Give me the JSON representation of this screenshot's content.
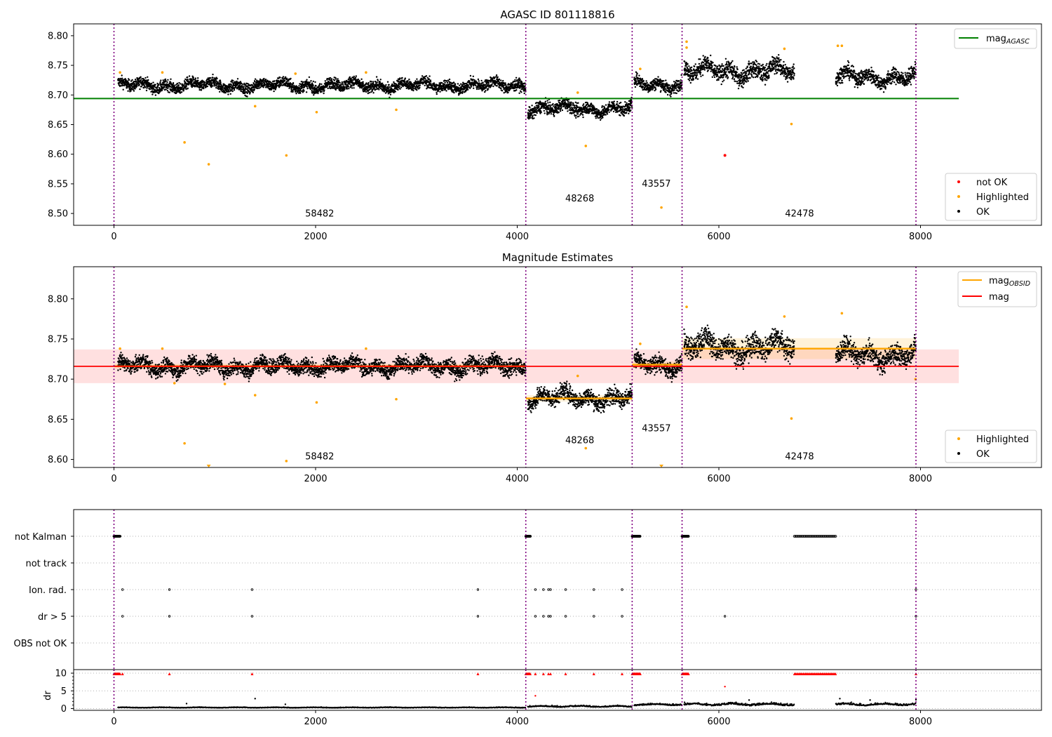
{
  "chart_data": [
    {
      "type": "scatter",
      "title": "AGASC ID 801118816",
      "xlim": [
        -400,
        9200
      ],
      "ylim": [
        8.48,
        8.82
      ],
      "xticks": [
        0,
        2000,
        4000,
        6000,
        8000
      ],
      "yticks": [
        8.5,
        8.55,
        8.6,
        8.65,
        8.7,
        8.75,
        8.8
      ],
      "xtick_labels": [
        "0",
        "2000",
        "4000",
        "6000",
        "8000"
      ],
      "ytick_labels": [
        "8.50",
        "8.55",
        "8.60",
        "8.65",
        "8.70",
        "8.75",
        "8.80"
      ],
      "obs_boundaries": [
        0,
        4085,
        5140,
        5635,
        7955
      ],
      "obs_labels": [
        {
          "text": "58482",
          "x": 2040,
          "y": 8.495
        },
        {
          "text": "48268",
          "x": 4620,
          "y": 8.52
        },
        {
          "text": "43557",
          "x": 5380,
          "y": 8.545
        },
        {
          "text": "42478",
          "x": 6800,
          "y": 8.495
        }
      ],
      "segments": [
        {
          "x0": 40,
          "x1": 4085,
          "center": 8.716,
          "spread": 0.009
        },
        {
          "x0": 4105,
          "x1": 5140,
          "center": 8.677,
          "spread": 0.01
        },
        {
          "x0": 5160,
          "x1": 5635,
          "center": 8.718,
          "spread": 0.01
        },
        {
          "x0": 5655,
          "x1": 6750,
          "center": 8.74,
          "spread": 0.014
        },
        {
          "x0": 7160,
          "x1": 7955,
          "center": 8.73,
          "spread": 0.012
        }
      ],
      "mag_agasc": {
        "value": 8.694,
        "x0": -400,
        "x1": 8380,
        "color": "#008000"
      },
      "highlighted_points": [
        [
          700,
          8.62
        ],
        [
          940,
          8.583
        ],
        [
          1710,
          8.598
        ],
        [
          2010,
          8.671
        ],
        [
          2800,
          8.675
        ],
        [
          1400,
          8.681
        ],
        [
          1800,
          8.736
        ],
        [
          480,
          8.738
        ],
        [
          60,
          8.738
        ],
        [
          2500,
          8.738
        ],
        [
          4680,
          8.614
        ],
        [
          4600,
          8.704
        ],
        [
          5430,
          8.51
        ],
        [
          6720,
          8.651
        ],
        [
          5680,
          8.79
        ],
        [
          5680,
          8.78
        ],
        [
          7220,
          8.783
        ],
        [
          7180,
          8.783
        ],
        [
          6650,
          8.778
        ],
        [
          5220,
          8.744
        ]
      ],
      "not_ok_points": [
        [
          6060,
          8.598
        ]
      ],
      "legends": [
        {
          "position": "top-right",
          "items": [
            {
              "label": "mag",
              "sub": "AGASC",
              "color": "#008000",
              "kind": "line"
            }
          ]
        },
        {
          "position": "lower-right",
          "items": [
            {
              "label": "not OK",
              "color": "#ff0000",
              "kind": "dot"
            },
            {
              "label": "Highlighted",
              "color": "#ffa500",
              "kind": "dot"
            },
            {
              "label": "OK",
              "color": "#000000",
              "kind": "dot"
            }
          ]
        }
      ]
    },
    {
      "type": "scatter",
      "title": "Magnitude Estimates",
      "xlim": [
        -400,
        9200
      ],
      "ylim": [
        8.59,
        8.84
      ],
      "xticks": [
        0,
        2000,
        4000,
        6000,
        8000
      ],
      "yticks": [
        8.6,
        8.65,
        8.7,
        8.75,
        8.8
      ],
      "xtick_labels": [
        "0",
        "2000",
        "4000",
        "6000",
        "8000"
      ],
      "ytick_labels": [
        "8.60",
        "8.65",
        "8.70",
        "8.75",
        "8.80"
      ],
      "obs_boundaries": [
        0,
        4085,
        5140,
        5635,
        7955
      ],
      "obs_labels": [
        {
          "text": "58482",
          "x": 2040,
          "y": 8.6
        },
        {
          "text": "48268",
          "x": 4620,
          "y": 8.62
        },
        {
          "text": "43557",
          "x": 5380,
          "y": 8.635
        },
        {
          "text": "42478",
          "x": 6800,
          "y": 8.6
        }
      ],
      "mag": {
        "value": 8.716,
        "band": [
          8.695,
          8.737
        ],
        "x0": -400,
        "x1": 8380,
        "color": "#ff0000"
      },
      "mag_obsid": [
        {
          "x0": 0,
          "x1": 4085,
          "value": 8.716,
          "band": [
            8.713,
            8.719
          ]
        },
        {
          "x0": 4085,
          "x1": 5140,
          "value": 8.676,
          "band": [
            8.672,
            8.68
          ]
        },
        {
          "x0": 5140,
          "x1": 5635,
          "value": 8.718,
          "band": [
            8.714,
            8.722
          ]
        },
        {
          "x0": 5635,
          "x1": 7955,
          "value": 8.738,
          "band": [
            8.725,
            8.751
          ]
        }
      ],
      "segments": [
        {
          "x0": 40,
          "x1": 4085,
          "center": 8.716,
          "spread": 0.009
        },
        {
          "x0": 4105,
          "x1": 5140,
          "center": 8.677,
          "spread": 0.01
        },
        {
          "x0": 5160,
          "x1": 5635,
          "center": 8.718,
          "spread": 0.01
        },
        {
          "x0": 5655,
          "x1": 6750,
          "center": 8.74,
          "spread": 0.014
        },
        {
          "x0": 7160,
          "x1": 7955,
          "center": 8.73,
          "spread": 0.012
        }
      ],
      "highlighted_points": [
        [
          700,
          8.62
        ],
        [
          1710,
          8.598
        ],
        [
          2010,
          8.671
        ],
        [
          2800,
          8.675
        ],
        [
          1400,
          8.68
        ],
        [
          480,
          8.738
        ],
        [
          60,
          8.738
        ],
        [
          2500,
          8.738
        ],
        [
          4680,
          8.614
        ],
        [
          4600,
          8.704
        ],
        [
          6720,
          8.651
        ],
        [
          5680,
          8.79
        ],
        [
          7220,
          8.782
        ],
        [
          6650,
          8.778
        ],
        [
          5220,
          8.744
        ],
        [
          7950,
          8.7
        ],
        [
          1100,
          8.694
        ],
        [
          600,
          8.695
        ]
      ],
      "clipped_points": [
        940,
        5430
      ],
      "legends": [
        {
          "position": "top-right",
          "items": [
            {
              "label": "mag",
              "sub": "OBSID",
              "color": "#ffa500",
              "kind": "line"
            },
            {
              "label": "mag",
              "sub": "",
              "color": "#ff0000",
              "kind": "line"
            }
          ]
        },
        {
          "position": "lower-right",
          "items": [
            {
              "label": "Highlighted",
              "color": "#ffa500",
              "kind": "dot"
            },
            {
              "label": "OK",
              "color": "#000000",
              "kind": "dot"
            }
          ]
        }
      ]
    },
    {
      "type": "scatter",
      "xlim": [
        -400,
        9200
      ],
      "xticks": [
        0,
        2000,
        4000,
        6000,
        8000
      ],
      "xtick_labels": [
        "0",
        "2000",
        "4000",
        "6000",
        "8000"
      ],
      "obs_boundaries": [
        0,
        4085,
        5140,
        5635,
        7955
      ],
      "flag_rows": [
        "not Kalman",
        "not track",
        "Ion. rad.",
        "dr > 5",
        "OBS not OK"
      ],
      "flags": {
        "not Kalman": [
          [
            0,
            60
          ],
          [
            4085,
            4130
          ],
          [
            5140,
            5220
          ],
          [
            5635,
            5700
          ],
          [
            6750,
            7160
          ]
        ],
        "not track": [],
        "Ion. rad.": [
          85,
          550,
          1370,
          3610,
          4180,
          4260,
          4310,
          4330,
          4480,
          4760,
          5040,
          7955
        ],
        "dr > 5": [
          85,
          550,
          1370,
          3610,
          4180,
          4260,
          4310,
          4330,
          4480,
          4760,
          5040,
          6060,
          7955
        ],
        "OBS not OK": []
      }
    },
    {
      "type": "scatter",
      "ylabel": "dr",
      "xlim": [
        -400,
        9200
      ],
      "ylim": [
        -0.5,
        11
      ],
      "yticks": [
        0,
        5,
        10
      ],
      "ytick_labels": [
        "0",
        "5",
        "10"
      ],
      "xticks": [
        0,
        2000,
        4000,
        6000,
        8000
      ],
      "xtick_labels": [
        "0",
        "2000",
        "4000",
        "6000",
        "8000"
      ],
      "obs_boundaries": [
        0,
        4085,
        5140,
        5635,
        7955
      ],
      "clipped_at_10": [
        [
          0,
          60
        ],
        [
          4085,
          4130
        ],
        [
          5140,
          5220
        ],
        [
          5635,
          5700
        ],
        [
          6750,
          7160
        ],
        [
          85
        ],
        [
          550
        ],
        [
          1370
        ],
        [
          3610
        ],
        [
          4180
        ],
        [
          4260
        ],
        [
          4310
        ],
        [
          4330
        ],
        [
          4480
        ],
        [
          4760
        ],
        [
          5040
        ],
        [
          7955
        ]
      ],
      "red_points": [
        [
          6060,
          6.2
        ],
        [
          4180,
          3.6
        ]
      ],
      "dr_segments": [
        {
          "x0": 40,
          "x1": 4085,
          "base": 0.25,
          "spread": 0.2
        },
        {
          "x0": 4105,
          "x1": 5140,
          "base": 0.5,
          "spread": 0.5
        },
        {
          "x0": 5160,
          "x1": 5635,
          "base": 1.0,
          "spread": 0.6
        },
        {
          "x0": 5655,
          "x1": 6750,
          "base": 1.0,
          "spread": 0.9
        },
        {
          "x0": 7160,
          "x1": 7955,
          "base": 1.0,
          "spread": 0.8
        }
      ],
      "outliers": [
        [
          1400,
          2.8
        ],
        [
          720,
          1.4
        ],
        [
          1700,
          1.2
        ],
        [
          7200,
          2.8
        ],
        [
          7500,
          2.4
        ],
        [
          7955,
          2.5
        ],
        [
          6300,
          2.4
        ]
      ]
    }
  ]
}
